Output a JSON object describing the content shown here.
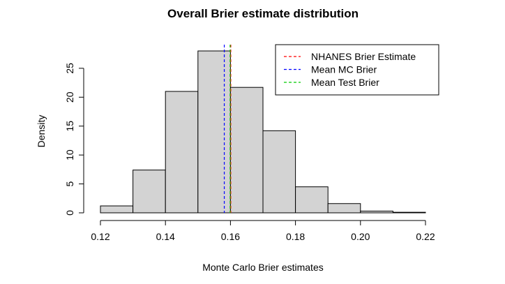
{
  "chart_data": {
    "type": "histogram",
    "title": "Overall Brier estimate distribution",
    "xlabel": "Monte Carlo Brier estimates",
    "ylabel": "Density",
    "bins": [
      {
        "x0": 0.12,
        "x1": 0.13,
        "density": 1.2
      },
      {
        "x0": 0.13,
        "x1": 0.14,
        "density": 7.4
      },
      {
        "x0": 0.14,
        "x1": 0.15,
        "density": 21.0
      },
      {
        "x0": 0.15,
        "x1": 0.16,
        "density": 28.0
      },
      {
        "x0": 0.16,
        "x1": 0.17,
        "density": 21.7
      },
      {
        "x0": 0.17,
        "x1": 0.18,
        "density": 14.2
      },
      {
        "x0": 0.18,
        "x1": 0.19,
        "density": 4.5
      },
      {
        "x0": 0.19,
        "x1": 0.2,
        "density": 1.6
      },
      {
        "x0": 0.2,
        "x1": 0.21,
        "density": 0.3
      },
      {
        "x0": 0.21,
        "x1": 0.22,
        "density": 0.1
      }
    ],
    "x_ticks": [
      "0.12",
      "0.14",
      "0.16",
      "0.18",
      "0.20",
      "0.22"
    ],
    "x_tick_values": [
      0.12,
      0.14,
      0.16,
      0.18,
      0.2,
      0.22
    ],
    "y_ticks": [
      "0",
      "5",
      "10",
      "15",
      "20",
      "25"
    ],
    "y_tick_values": [
      0,
      5,
      10,
      15,
      20,
      25
    ],
    "xlim": [
      0.12,
      0.22
    ],
    "ylim": [
      0,
      28
    ],
    "bar_fill": "#d3d3d3",
    "vlines": [
      {
        "name": "NHANES Brier Estimate",
        "x": 0.1601,
        "color": "#ff0000"
      },
      {
        "name": "Mean MC Brier",
        "x": 0.1581,
        "color": "#0000ff"
      },
      {
        "name": "Mean Test Brier",
        "x": 0.1599,
        "color": "#00cc00"
      }
    ],
    "legend_position": "top-right",
    "grid": false
  }
}
